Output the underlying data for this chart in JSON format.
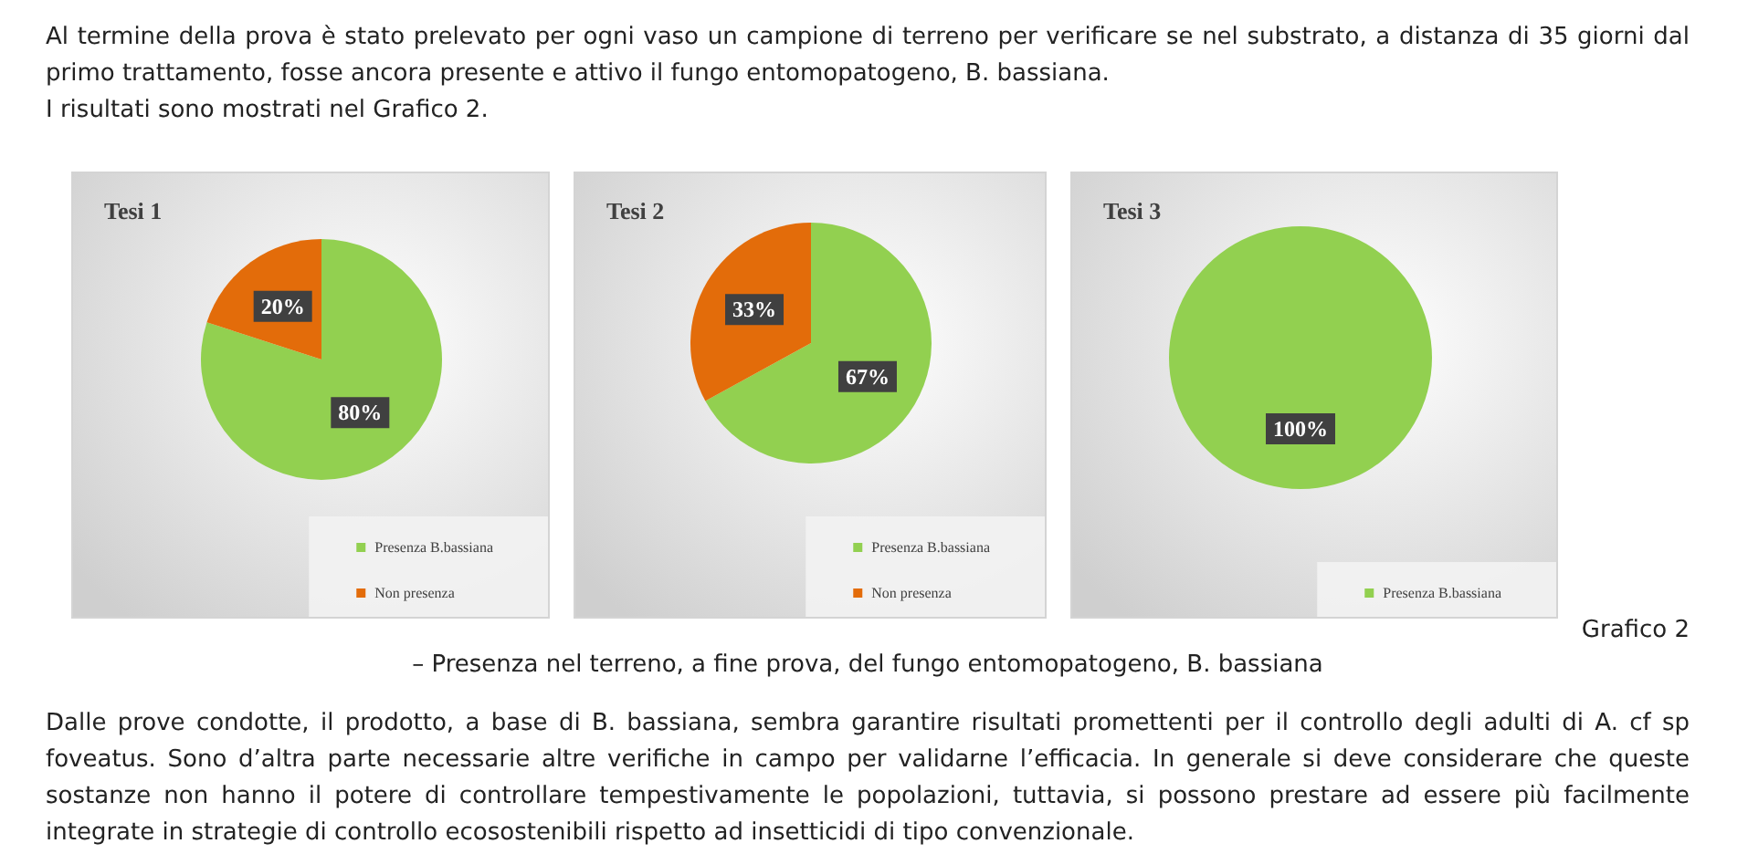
{
  "chart_data": [
    {
      "type": "pie",
      "title": "Tesi 1",
      "categories": [
        "Presenza B.bassiana",
        "Non presenza"
      ],
      "values": [
        80,
        20
      ],
      "colors": [
        "#92d050",
        "#e36c0a"
      ],
      "value_labels": [
        "80%",
        "20%"
      ],
      "legend": "bottom right",
      "annotations": [
        "Al termine della prova è stato prelevato per ogni vaso un campione di terreno per verificare se nel substrato, a distanza di 35 giorni dal primo trattamento, fosse ancora presente e attivo il fungo entomopatogeno, B. bassiana.",
        "I risultati sono mostrati nel Grafico 2."
      ]
    },
    {
      "type": "pie",
      "title": "Tesi 2",
      "categories": [
        "Presenza B.bassiana",
        "Non presenza"
      ],
      "values": [
        67,
        33
      ],
      "colors": [
        "#92d050",
        "#e36c0a"
      ],
      "value_labels": [
        "67%",
        "33%"
      ],
      "legend": "bottom right"
    },
    {
      "type": "pie",
      "title": "Tesi 3",
      "categories": [
        "Presenza B.bassiana"
      ],
      "values": [
        100
      ],
      "colors": [
        "#92d050"
      ],
      "value_labels": [
        "100%"
      ],
      "legend": "bottom right",
      "annotations": [
        "Grafico 2",
        "– Presenza nel terreno, a fine prova, del fungo entomopatogeno, B. bassiana",
        "Dalle prove condotte, il prodotto, a base di B. bassiana, sembra garantire risultati promettenti per il controllo degli adulti di A. cf sp foveatus.  Sono d’altra parte necessarie altre verifiche in campo per validarne l’efficacia. In generale si deve considerare che queste sostanze non hanno il potere di controllare tempestivamente le popolazioni, tuttavia, si possono prestare ad essere più facilmente integrate in strategie di controllo ecosostenibili rispetto ad insetticidi di tipo convenzionale."
      ]
    }
  ]
}
